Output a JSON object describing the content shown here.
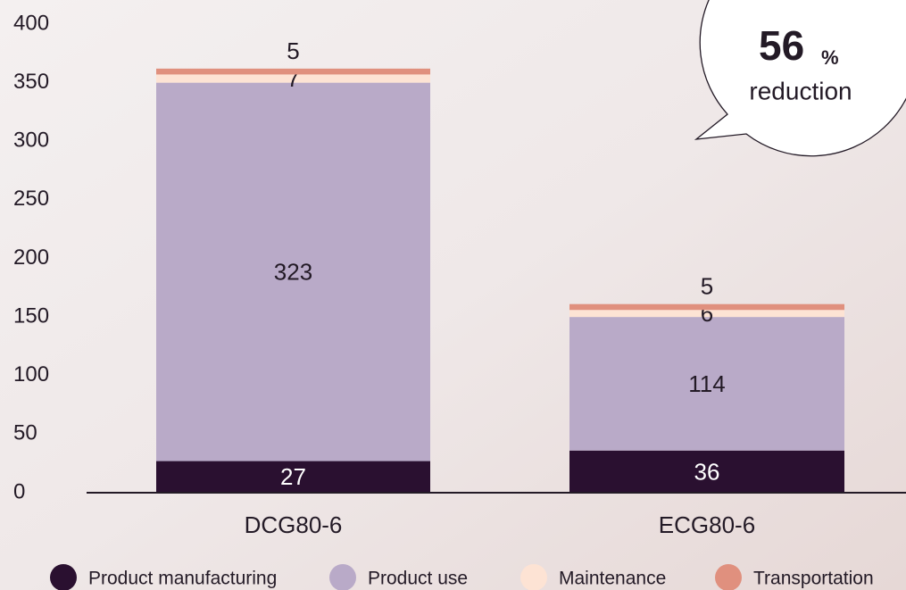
{
  "chart_data": {
    "type": "stacked-bar",
    "categories": [
      "DCG80-6",
      "ECG80-6"
    ],
    "series": [
      {
        "name": "Product manufacturing",
        "color": "#2a1030",
        "values": [
          27,
          36
        ]
      },
      {
        "name": "Product use",
        "color": "#b9aac8",
        "values": [
          323,
          114
        ]
      },
      {
        "name": "Maintenance",
        "color": "#fde3d4",
        "values": [
          7,
          6
        ]
      },
      {
        "name": "Transportation",
        "color": "#e0907e",
        "values": [
          5,
          5
        ]
      }
    ],
    "ylim": [
      0,
      400
    ],
    "yticks": [
      0,
      50,
      100,
      150,
      200,
      250,
      300,
      350,
      400
    ],
    "callout": {
      "number": "56",
      "unit": "%",
      "text": "reduction"
    }
  }
}
